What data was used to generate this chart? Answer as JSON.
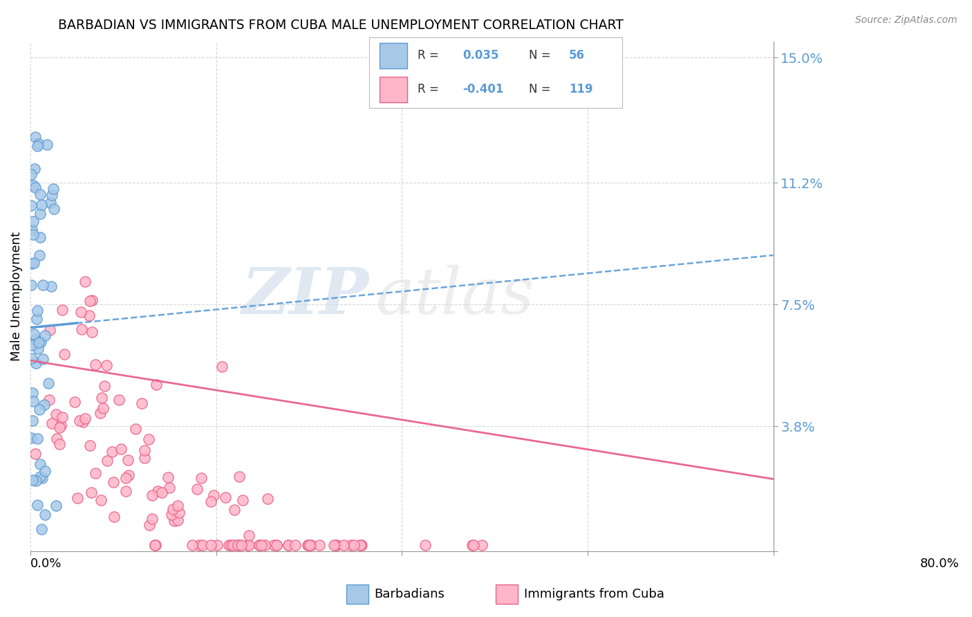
{
  "title": "BARBADIAN VS IMMIGRANTS FROM CUBA MALE UNEMPLOYMENT CORRELATION CHART",
  "source": "Source: ZipAtlas.com",
  "ylabel": "Male Unemployment",
  "xmin": 0.0,
  "xmax": 0.8,
  "ymin": 0.0,
  "ymax": 0.155,
  "yticks": [
    0.0,
    0.038,
    0.075,
    0.112,
    0.15
  ],
  "ytick_labels": [
    "",
    "3.8%",
    "7.5%",
    "11.2%",
    "15.0%"
  ],
  "color_blue": "#A8C8E8",
  "color_blue_edge": "#5B9BD5",
  "color_pink": "#FFB6C8",
  "color_pink_edge": "#E8608A",
  "color_line_blue": "#5B9BD5",
  "color_line_pink": "#E8608A",
  "blue_trendline": [
    0.0,
    0.8,
    0.068,
    0.09
  ],
  "pink_trendline": [
    0.0,
    0.8,
    0.058,
    0.022
  ],
  "watermark_zip": "ZIP",
  "watermark_atlas": "atlas",
  "background_color": "#FFFFFF",
  "grid_color": "#CCCCCC"
}
